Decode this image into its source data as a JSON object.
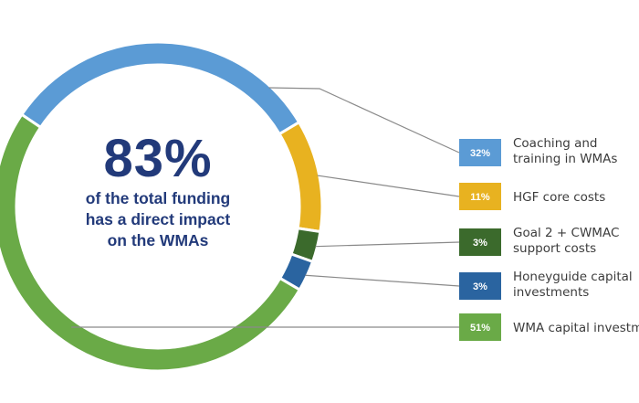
{
  "center": {
    "value": "83%",
    "caption": "of the total funding\nhas a direct impact\non the WMAs"
  },
  "chart_data": {
    "type": "pie",
    "style": "donut",
    "series": [
      {
        "name": "Coaching and training in WMAs",
        "label_lines": [
          "Coaching and",
          "training in WMAs"
        ],
        "value": 32,
        "badge": "32%",
        "color": "#5b9bd5"
      },
      {
        "name": "HGF core costs",
        "label_lines": [
          "HGF core costs"
        ],
        "value": 11,
        "badge": "11%",
        "color": "#e8b220"
      },
      {
        "name": "Goal 2 + CWMAC support costs",
        "label_lines": [
          "Goal 2 + CWMAC",
          "support costs"
        ],
        "value": 3,
        "badge": "3%",
        "color": "#3b6a2c"
      },
      {
        "name": "Honeyguide capital investments",
        "label_lines": [
          "Honeyguide capital",
          "investments"
        ],
        "value": 3,
        "badge": "3%",
        "color": "#2a64a0"
      },
      {
        "name": "WMA capital investments",
        "label_lines": [
          "WMA capital investments"
        ],
        "value": 51,
        "badge": "51%",
        "color": "#6aaa47"
      }
    ],
    "legend_placement": "right"
  }
}
